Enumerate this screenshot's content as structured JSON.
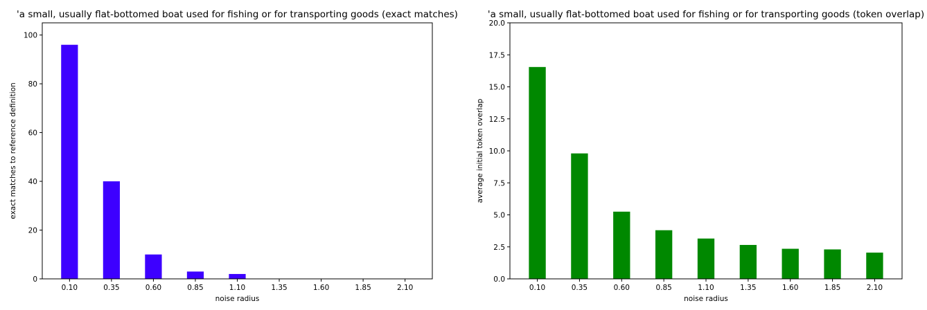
{
  "chart_data": [
    {
      "type": "bar",
      "title": "'a small, usually flat-bottomed boat used for fishing or for transporting goods (exact matches)",
      "xlabel": "noise radius",
      "ylabel": "exact matches to reference definition",
      "categories": [
        "0.10",
        "0.35",
        "0.60",
        "0.85",
        "1.10",
        "1.35",
        "1.60",
        "1.85",
        "2.10"
      ],
      "values": [
        96,
        40,
        10,
        3,
        2,
        0,
        0,
        0,
        0
      ],
      "ylim": [
        0,
        105
      ],
      "yticks": [
        "0",
        "20",
        "40",
        "60",
        "80",
        "100"
      ],
      "color": "#3d00ff",
      "grid": false,
      "legend": false
    },
    {
      "type": "bar",
      "title": "'a small, usually flat-bottomed boat used for fishing or for transporting goods (token overlap)",
      "xlabel": "noise radius",
      "ylabel": "average initial token overlap",
      "categories": [
        "0.10",
        "0.35",
        "0.60",
        "0.85",
        "1.10",
        "1.35",
        "1.60",
        "1.85",
        "2.10"
      ],
      "values": [
        16.55,
        9.8,
        5.25,
        3.8,
        3.15,
        2.65,
        2.35,
        2.3,
        2.05
      ],
      "ylim": [
        0,
        20
      ],
      "yticks": [
        "0.0",
        "2.5",
        "5.0",
        "7.5",
        "10.0",
        "12.5",
        "15.0",
        "17.5",
        "20.0"
      ],
      "color": "#008800",
      "grid": false,
      "legend": false
    }
  ]
}
